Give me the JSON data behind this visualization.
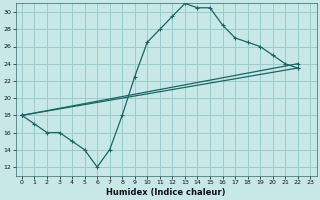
{
  "xlabel": "Humidex (Indice chaleur)",
  "bg_color": "#c8e8e8",
  "grid_color": "#99cccc",
  "line_color": "#1a6666",
  "xlim": [
    -0.5,
    23.5
  ],
  "ylim": [
    11.0,
    31.0
  ],
  "yticks": [
    12,
    14,
    16,
    18,
    20,
    22,
    24,
    26,
    28,
    30
  ],
  "xticks": [
    0,
    1,
    2,
    3,
    4,
    5,
    6,
    7,
    8,
    9,
    10,
    11,
    12,
    13,
    14,
    15,
    16,
    17,
    18,
    19,
    20,
    21,
    22,
    23
  ],
  "line1_x": [
    0,
    1,
    2,
    3,
    4,
    5,
    6,
    7,
    8,
    9,
    10,
    11,
    12,
    13,
    14,
    15,
    16,
    17,
    18,
    19,
    20,
    21,
    22
  ],
  "line1_y": [
    18,
    17,
    16,
    16,
    15,
    14,
    12,
    14,
    18,
    22.5,
    26.5,
    28,
    29.5,
    31,
    30.5,
    30.5,
    28.5,
    27,
    26.5,
    26,
    25,
    24,
    23.5
  ],
  "line2_x": [
    0,
    22
  ],
  "line2_y": [
    18,
    23.5
  ],
  "line3_x": [
    0,
    22
  ],
  "line3_y": [
    18,
    24.0
  ]
}
